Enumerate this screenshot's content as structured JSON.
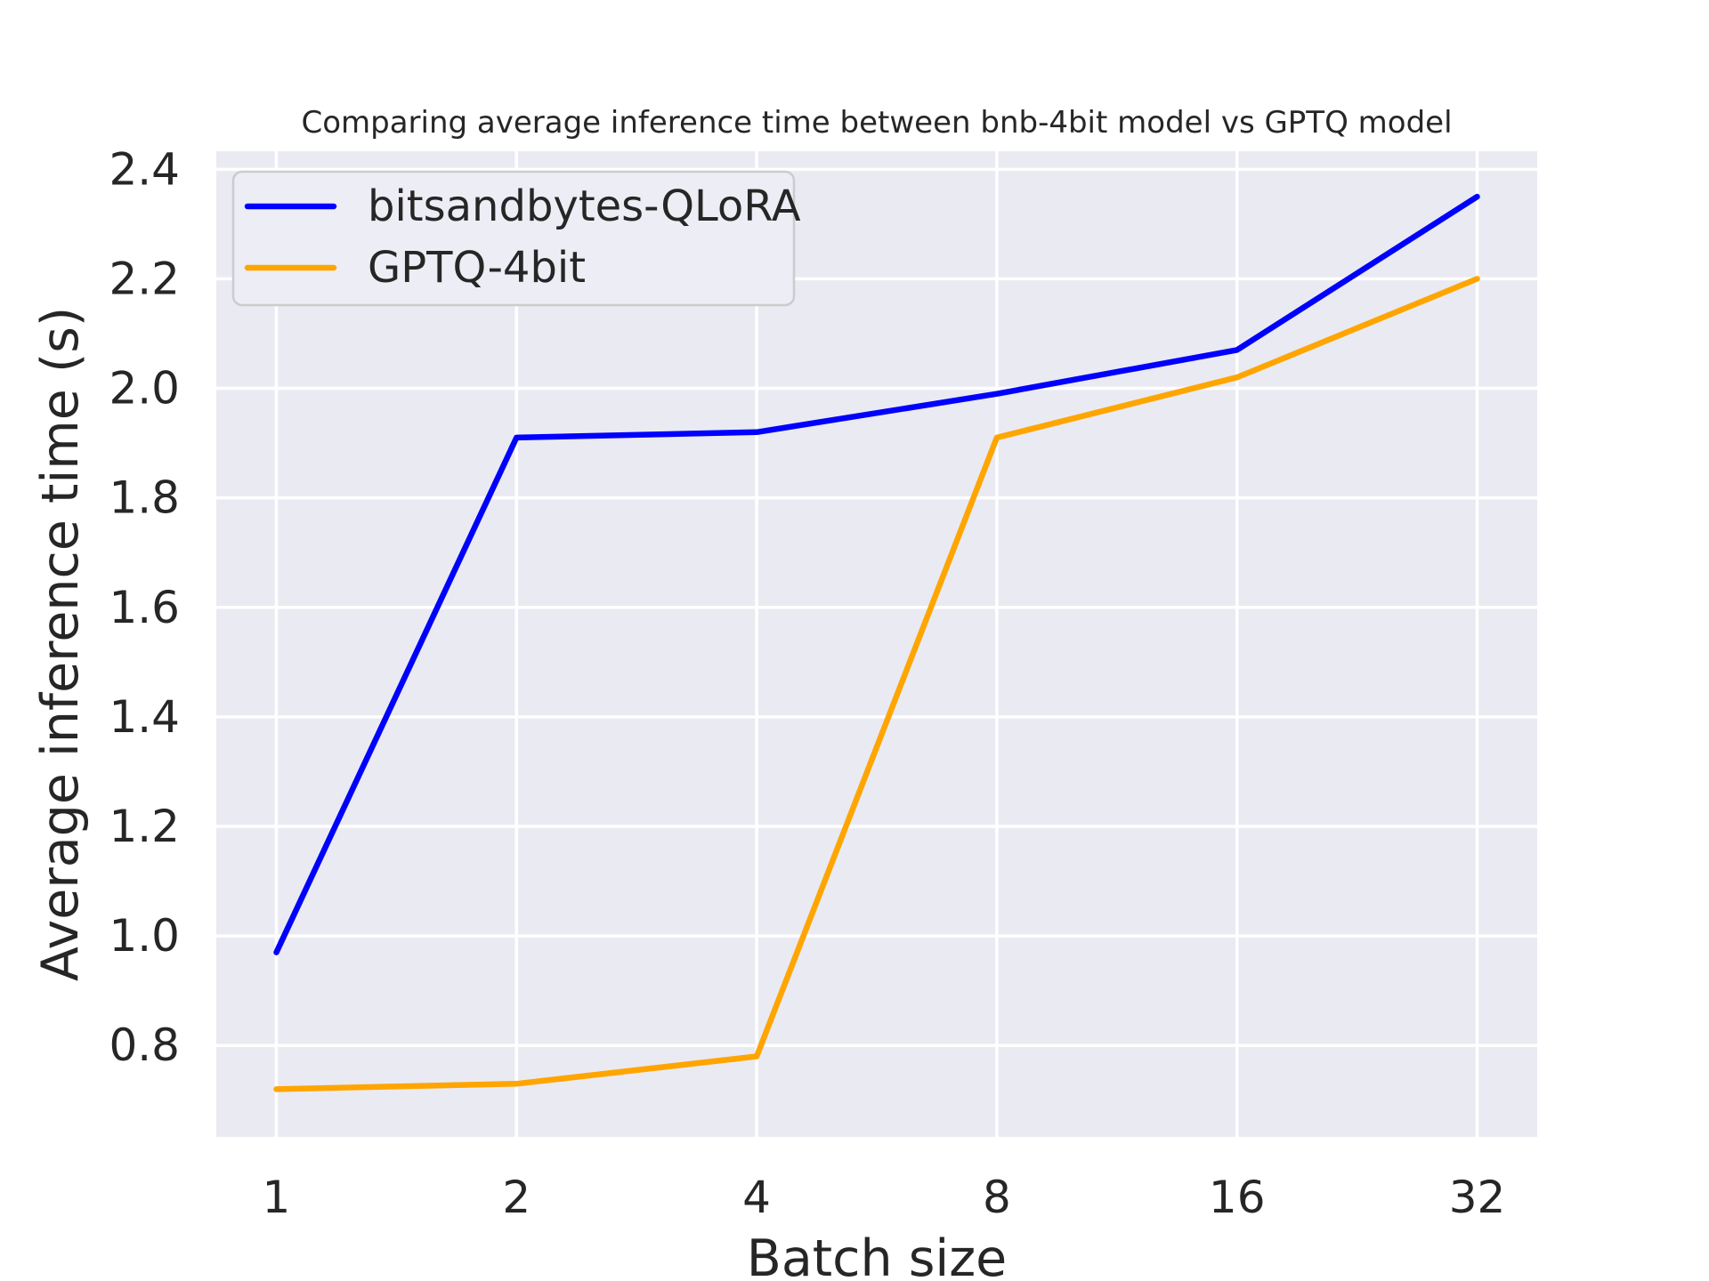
{
  "chart_data": {
    "type": "line",
    "title": "Comparing average inference time between bnb-4bit model vs GPTQ model",
    "xlabel": "Batch size",
    "ylabel": "Average inference time (s)",
    "categories": [
      1,
      2,
      4,
      8,
      16,
      32
    ],
    "xtick_labels": [
      "1",
      "2",
      "4",
      "8",
      "16",
      "32"
    ],
    "x_scale": "log2-categorical",
    "series": [
      {
        "name": "bitsandbytes-QLoRA",
        "color": "#0000FF",
        "values": [
          0.97,
          1.91,
          1.92,
          1.99,
          2.07,
          2.35
        ]
      },
      {
        "name": "GPTQ-4bit",
        "color": "#FFA500",
        "values": [
          0.72,
          0.73,
          0.78,
          1.91,
          2.02,
          2.2
        ]
      }
    ],
    "yticks": [
      0.8,
      1.0,
      1.2,
      1.4,
      1.6,
      1.8,
      2.0,
      2.2,
      2.4
    ],
    "ytick_labels": [
      "0.8",
      "1.0",
      "1.2",
      "1.4",
      "1.6",
      "1.8",
      "2.0",
      "2.2",
      "2.4"
    ],
    "ylim": [
      0.633,
      2.433
    ],
    "grid": true,
    "legend_position": "upper-left",
    "style": {
      "figure_bg": "#FFFFFF",
      "axes_bg": "#EAEAF2",
      "grid_color": "#FFFFFF",
      "text_color": "#262626",
      "legend_bg": "#EDEDF5",
      "legend_border": "#CCCCCC"
    }
  }
}
